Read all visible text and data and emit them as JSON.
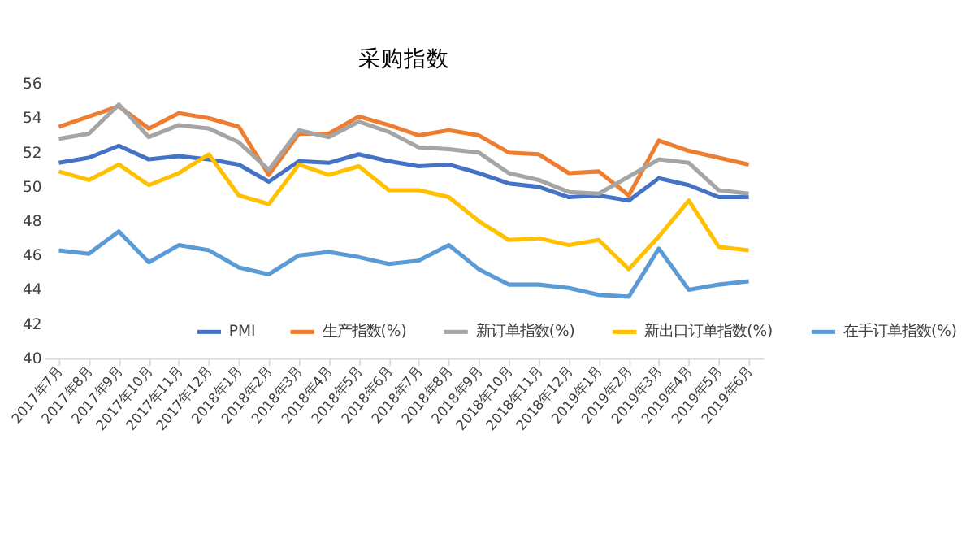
{
  "chart_data": {
    "type": "line",
    "title": "采购指数",
    "categories": [
      "2017年7月",
      "2017年8月",
      "2017年9月",
      "2017年10月",
      "2017年11月",
      "2017年12月",
      "2018年1月",
      "2018年2月",
      "2018年3月",
      "2018年4月",
      "2018年5月",
      "2018年6月",
      "2018年7月",
      "2018年8月",
      "2018年9月",
      "2018年10月",
      "2018年11月",
      "2018年12月",
      "2019年1月",
      "2019年2月",
      "2019年3月",
      "2019年4月",
      "2019年5月",
      "2019年6月"
    ],
    "series": [
      {
        "name": "PMI",
        "color": "#4472c4",
        "values": [
          51.4,
          51.7,
          52.4,
          51.6,
          51.8,
          51.6,
          51.3,
          50.3,
          51.5,
          51.4,
          51.9,
          51.5,
          51.2,
          51.3,
          50.8,
          50.2,
          50.0,
          49.4,
          49.5,
          49.2,
          50.5,
          50.1,
          49.4,
          49.4
        ]
      },
      {
        "name": "生产指数(%)",
        "color": "#ed7d31",
        "values": [
          53.5,
          54.1,
          54.7,
          53.4,
          54.3,
          54.0,
          53.5,
          50.7,
          53.1,
          53.1,
          54.1,
          53.6,
          53.0,
          53.3,
          53.0,
          52.0,
          51.9,
          50.8,
          50.9,
          49.5,
          52.7,
          52.1,
          51.7,
          51.3
        ]
      },
      {
        "name": "新订单指数(%)",
        "color": "#a5a5a5",
        "values": [
          52.8,
          53.1,
          54.8,
          52.9,
          53.6,
          53.4,
          52.6,
          51.0,
          53.3,
          52.9,
          53.8,
          53.2,
          52.3,
          52.2,
          52.0,
          50.8,
          50.4,
          49.7,
          49.6,
          50.6,
          51.6,
          51.4,
          49.8,
          49.6
        ]
      },
      {
        "name": "新出口订单指数(%)",
        "color": "#ffc000",
        "values": [
          50.9,
          50.4,
          51.3,
          50.1,
          50.8,
          51.9,
          49.5,
          49.0,
          51.3,
          50.7,
          51.2,
          49.8,
          49.8,
          49.4,
          48.0,
          46.9,
          47.0,
          46.6,
          46.9,
          45.2,
          47.1,
          49.2,
          46.5,
          46.3
        ]
      },
      {
        "name": "在手订单指数(%)",
        "color": "#5b9bd5",
        "values": [
          46.3,
          46.1,
          47.4,
          45.6,
          46.6,
          46.3,
          45.3,
          44.9,
          46.0,
          46.2,
          45.9,
          45.5,
          45.7,
          46.6,
          45.2,
          44.3,
          44.3,
          44.1,
          43.7,
          43.6,
          46.4,
          44.0,
          44.3,
          44.5
        ]
      }
    ],
    "ylim": [
      40,
      56
    ],
    "yticks": [
      40,
      42,
      44,
      46,
      48,
      50,
      52,
      54,
      56
    ],
    "grid": false,
    "legend": "bottom",
    "marker": "none",
    "line_style": "solid"
  }
}
